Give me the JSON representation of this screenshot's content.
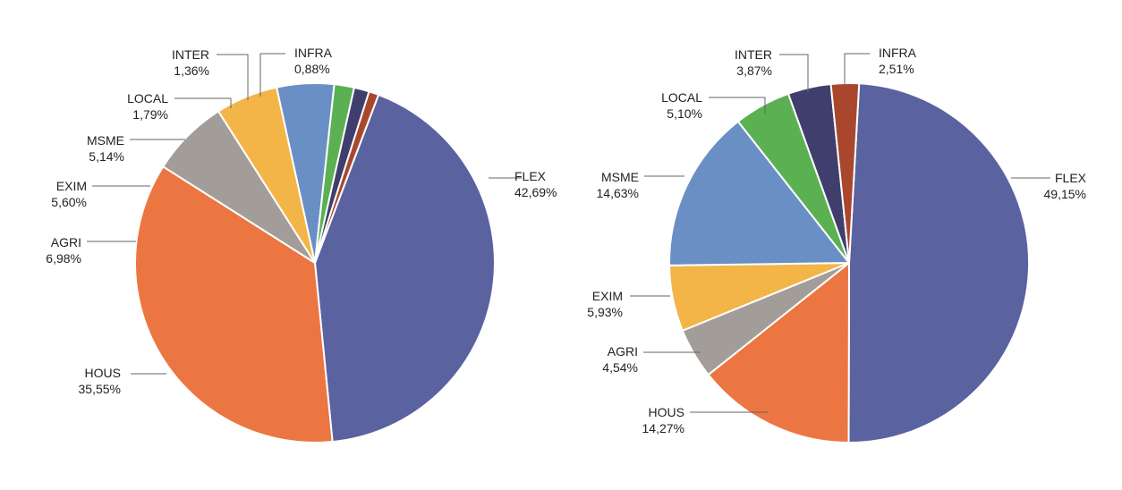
{
  "chart_data": [
    {
      "type": "pie",
      "title": "",
      "slices": [
        {
          "label": "FLEX",
          "value": 42.69,
          "value_text": "42,69%",
          "color": "#5b62a0"
        },
        {
          "label": "HOUS",
          "value": 35.55,
          "value_text": "35,55%",
          "color": "#ec7642"
        },
        {
          "label": "AGRI",
          "value": 6.98,
          "value_text": "6,98%",
          "color": "#a39d99"
        },
        {
          "label": "EXIM",
          "value": 5.6,
          "value_text": "5,60%",
          "color": "#f3b548"
        },
        {
          "label": "MSME",
          "value": 5.14,
          "value_text": "5,14%",
          "color": "#6a8fc4"
        },
        {
          "label": "LOCAL",
          "value": 1.79,
          "value_text": "1,79%",
          "color": "#5bb152"
        },
        {
          "label": "INTER",
          "value": 1.36,
          "value_text": "1,36%",
          "color": "#3f3e6c"
        },
        {
          "label": "INFRA",
          "value": 0.88,
          "value_text": "0,88%",
          "color": "#a8472d"
        }
      ]
    },
    {
      "type": "pie",
      "title": "",
      "slices": [
        {
          "label": "FLEX",
          "value": 49.15,
          "value_text": "49,15%",
          "color": "#5b62a0"
        },
        {
          "label": "HOUS",
          "value": 14.27,
          "value_text": "14,27%",
          "color": "#ec7642"
        },
        {
          "label": "AGRI",
          "value": 4.54,
          "value_text": "4,54%",
          "color": "#a39d99"
        },
        {
          "label": "EXIM",
          "value": 5.93,
          "value_text": "5,93%",
          "color": "#f3b548"
        },
        {
          "label": "MSME",
          "value": 14.63,
          "value_text": "14,63%",
          "color": "#6a8fc4"
        },
        {
          "label": "LOCAL",
          "value": 5.1,
          "value_text": "5,10%",
          "color": "#5bb152"
        },
        {
          "label": "INTER",
          "value": 3.87,
          "value_text": "3,87%",
          "color": "#3f3e6c"
        },
        {
          "label": "INFRA",
          "value": 2.51,
          "value_text": "2,51%",
          "color": "#a8472d"
        }
      ]
    }
  ]
}
